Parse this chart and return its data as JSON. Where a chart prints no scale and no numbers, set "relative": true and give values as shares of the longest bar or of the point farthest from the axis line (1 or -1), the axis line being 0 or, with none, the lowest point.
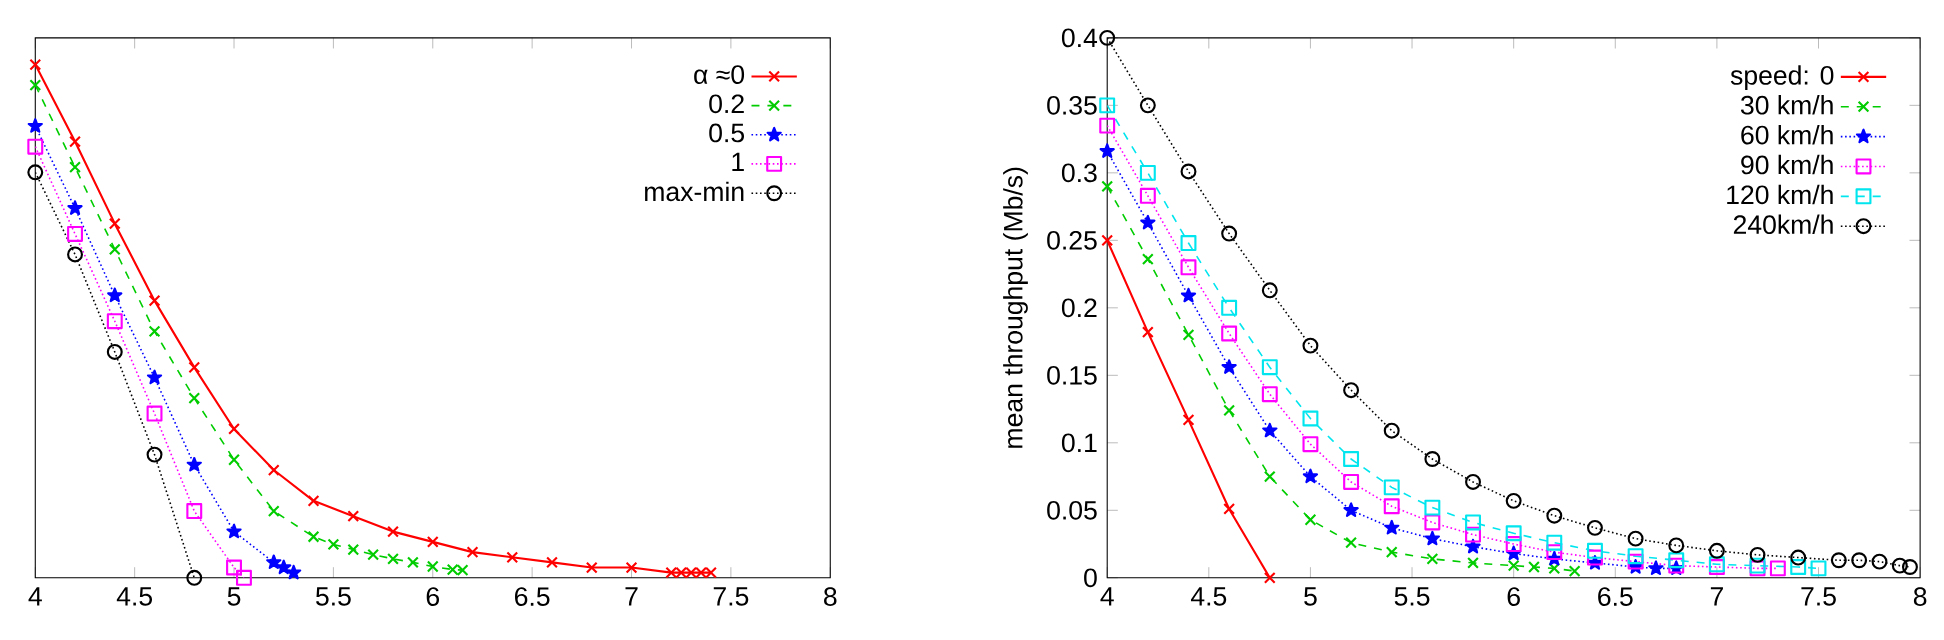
{
  "chart_data": [
    {
      "type": "line",
      "relative": true,
      "xlim": [
        4,
        8
      ],
      "xticks": [
        4,
        4.5,
        5,
        5.5,
        6,
        6.5,
        7,
        7.5,
        8
      ],
      "grid": false,
      "legend": "top right",
      "tick_labels": "x",
      "series": [
        {
          "name": "α ≈0",
          "color": "#ff0000",
          "marker": "cross",
          "line_style": "solid",
          "x": [
            4,
            4.2,
            4.4,
            4.6,
            4.8,
            5.0,
            5.2,
            5.4,
            5.6,
            5.8,
            6.0,
            6.2,
            6.4,
            6.6,
            6.8,
            7.0,
            7.2,
            7.25,
            7.3,
            7.35,
            7.4
          ],
          "values": [
            1,
            0.85,
            0.69,
            0.54,
            0.41,
            0.29,
            0.21,
            0.15,
            0.12,
            0.09,
            0.07,
            0.05,
            0.04,
            0.03,
            0.02,
            0.02,
            0.01,
            0.01,
            0.01,
            0.01,
            0.01
          ]
        },
        {
          "name": "0.2",
          "color": "#00cc00",
          "marker": "cross",
          "line_style": "dashed",
          "x": [
            4,
            4.2,
            4.4,
            4.6,
            4.8,
            5.0,
            5.2,
            5.4,
            5.5,
            5.6,
            5.7,
            5.8,
            5.9,
            6.0,
            6.1,
            6.15
          ],
          "values": [
            0.96,
            0.8,
            0.64,
            0.48,
            0.35,
            0.23,
            0.13,
            0.08,
            0.065,
            0.055,
            0.045,
            0.037,
            0.03,
            0.022,
            0.016,
            0.015
          ]
        },
        {
          "name": "0.5",
          "color": "#0000ff",
          "marker": "star",
          "line_style": "dotted",
          "x": [
            4,
            4.2,
            4.4,
            4.6,
            4.8,
            5.0,
            5.2,
            5.25,
            5.3
          ],
          "values": [
            0.88,
            0.72,
            0.55,
            0.39,
            0.22,
            0.09,
            0.03,
            0.02,
            0.01
          ]
        },
        {
          "name": "1",
          "color": "#ff00ff",
          "marker": "square",
          "line_style": "dotted",
          "x": [
            4,
            4.2,
            4.4,
            4.6,
            4.8,
            5.0,
            5.05
          ],
          "values": [
            0.84,
            0.67,
            0.5,
            0.32,
            0.13,
            0.02,
            0
          ]
        },
        {
          "name": "max-min",
          "color": "#000000",
          "marker": "circle",
          "line_style": "dotted",
          "x": [
            4,
            4.2,
            4.4,
            4.6,
            4.8
          ],
          "values": [
            0.79,
            0.63,
            0.44,
            0.24,
            0
          ]
        }
      ]
    },
    {
      "type": "line",
      "ylabel": "mean throughput (Mb/s)",
      "xlim": [
        4,
        8
      ],
      "xticks": [
        4,
        4.5,
        5,
        5.5,
        6,
        6.5,
        7,
        7.5,
        8
      ],
      "ylim": [
        0,
        0.4
      ],
      "yticks": [
        0,
        0.05,
        0.1,
        0.15,
        0.2,
        0.25,
        0.3,
        0.35,
        0.4
      ],
      "grid": false,
      "legend": "top right",
      "series": [
        {
          "name": "speed: 0",
          "color": "#ff0000",
          "marker": "cross",
          "line_style": "solid",
          "x": [
            4,
            4.2,
            4.4,
            4.6,
            4.8
          ],
          "values": [
            0.25,
            0.182,
            0.117,
            0.051,
            0
          ]
        },
        {
          "name": "30 km/h",
          "color": "#00cc00",
          "marker": "cross",
          "line_style": "dashed",
          "x": [
            4,
            4.2,
            4.4,
            4.6,
            4.8,
            5.0,
            5.2,
            5.4,
            5.6,
            5.8,
            6.0,
            6.1,
            6.2,
            6.3
          ],
          "values": [
            0.29,
            0.236,
            0.18,
            0.124,
            0.075,
            0.043,
            0.026,
            0.019,
            0.014,
            0.011,
            0.009,
            0.008,
            0.007,
            0.005
          ]
        },
        {
          "name": "60 km/h",
          "color": "#0000ff",
          "marker": "star",
          "line_style": "dotted",
          "x": [
            4,
            4.2,
            4.4,
            4.6,
            4.8,
            5.0,
            5.2,
            5.4,
            5.6,
            5.8,
            6.0,
            6.2,
            6.4,
            6.6,
            6.7,
            6.8
          ],
          "values": [
            0.316,
            0.263,
            0.209,
            0.156,
            0.109,
            0.075,
            0.05,
            0.037,
            0.029,
            0.023,
            0.018,
            0.014,
            0.011,
            0.008,
            0.007,
            0.007
          ]
        },
        {
          "name": "90 km/h",
          "color": "#ff00ff",
          "marker": "square",
          "line_style": "dotted",
          "x": [
            4,
            4.2,
            4.4,
            4.6,
            4.8,
            5.0,
            5.2,
            5.4,
            5.6,
            5.8,
            6.0,
            6.2,
            6.4,
            6.6,
            6.8,
            7.0,
            7.2,
            7.3
          ],
          "values": [
            0.335,
            0.283,
            0.23,
            0.181,
            0.136,
            0.099,
            0.071,
            0.053,
            0.041,
            0.032,
            0.025,
            0.019,
            0.015,
            0.012,
            0.009,
            0.008,
            0.007,
            0.007
          ]
        },
        {
          "name": "120 km/h",
          "color": "#00e5ee",
          "marker": "square",
          "line_style": "dashed",
          "x": [
            4,
            4.2,
            4.4,
            4.6,
            4.8,
            5.0,
            5.2,
            5.4,
            5.6,
            5.8,
            6.0,
            6.2,
            6.4,
            6.6,
            6.8,
            7.0,
            7.2,
            7.4,
            7.5
          ],
          "values": [
            0.35,
            0.3,
            0.248,
            0.2,
            0.156,
            0.118,
            0.088,
            0.067,
            0.052,
            0.041,
            0.033,
            0.026,
            0.02,
            0.016,
            0.013,
            0.01,
            0.009,
            0.008,
            0.007
          ]
        },
        {
          "name": "240km/h",
          "color": "#000000",
          "marker": "circle",
          "line_style": "dotted",
          "x": [
            4,
            4.2,
            4.4,
            4.6,
            4.8,
            5.0,
            5.2,
            5.4,
            5.6,
            5.8,
            6.0,
            6.2,
            6.4,
            6.6,
            6.8,
            7.0,
            7.2,
            7.4,
            7.6,
            7.7,
            7.8,
            7.9,
            7.95
          ],
          "values": [
            0.4,
            0.35,
            0.301,
            0.255,
            0.213,
            0.172,
            0.139,
            0.109,
            0.088,
            0.071,
            0.057,
            0.046,
            0.037,
            0.029,
            0.024,
            0.02,
            0.017,
            0.015,
            0.013,
            0.013,
            0.012,
            0.009,
            0.008
          ]
        }
      ]
    }
  ]
}
